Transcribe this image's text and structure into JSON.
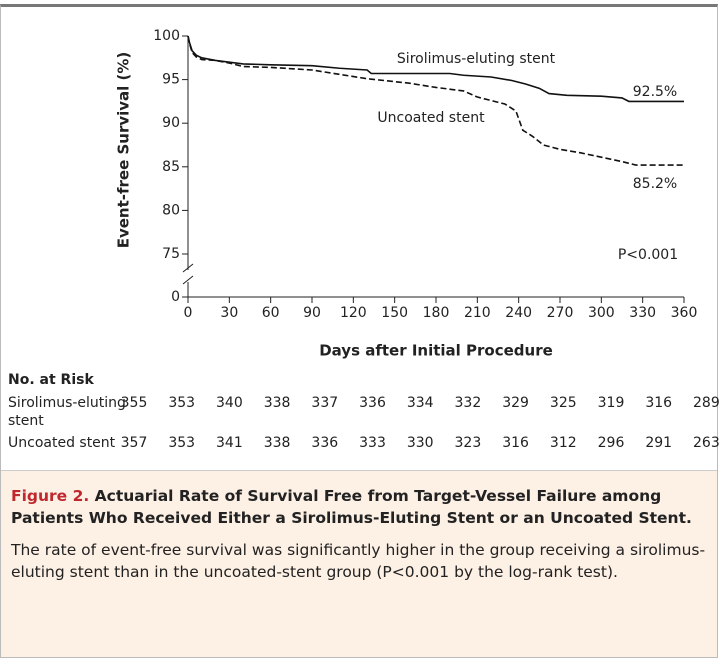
{
  "chart_data": {
    "type": "line",
    "y_label": "Event-free Survival (%)",
    "x_label": "Days after Initial Procedure",
    "xlim": [
      0,
      360
    ],
    "xticks": [
      0,
      30,
      60,
      90,
      120,
      150,
      180,
      210,
      240,
      270,
      300,
      330,
      360
    ],
    "ylim": [
      75,
      100
    ],
    "yticks": [
      0,
      75,
      80,
      85,
      90,
      95,
      100
    ],
    "y_break": [
      0,
      75
    ],
    "series": [
      {
        "name": "Sirolimus-eluting stent",
        "color": "#111111",
        "dashed": false,
        "x": [
          0,
          1,
          3,
          6,
          10,
          20,
          30,
          40,
          60,
          90,
          110,
          130,
          133,
          190,
          200,
          220,
          235,
          245,
          255,
          262,
          275,
          300,
          315,
          320,
          360
        ],
        "values": [
          100,
          99.3,
          98.3,
          97.8,
          97.5,
          97.2,
          97,
          96.8,
          96.7,
          96.6,
          96.3,
          96.1,
          95.7,
          95.7,
          95.5,
          95.3,
          94.9,
          94.5,
          94,
          93.4,
          93.2,
          93.1,
          92.9,
          92.5,
          92.5
        ]
      },
      {
        "name": "Uncoated stent",
        "color": "#111111",
        "dashed": true,
        "x": [
          0,
          1,
          3,
          6,
          10,
          20,
          30,
          40,
          60,
          90,
          110,
          130,
          160,
          180,
          200,
          210,
          230,
          238,
          243,
          250,
          258,
          270,
          285,
          300,
          315,
          325,
          360
        ],
        "values": [
          100,
          99.2,
          98.1,
          97.6,
          97.3,
          97.2,
          96.9,
          96.5,
          96.4,
          96.1,
          95.6,
          95.1,
          94.6,
          94.1,
          93.7,
          93.0,
          92.2,
          91.4,
          89.2,
          88.5,
          87.5,
          87.0,
          86.6,
          86.1,
          85.6,
          85.2,
          85.2
        ]
      }
    ],
    "annotations": [
      "92.5%",
      "85.2%",
      "P<0.001"
    ],
    "risk_table": {
      "title": "No. at Risk",
      "rows": [
        {
          "label": "Sirolimus-eluting stent",
          "values": [
            355,
            353,
            340,
            338,
            337,
            336,
            334,
            332,
            329,
            325,
            319,
            316,
            289
          ]
        },
        {
          "label": "Uncoated stent",
          "values": [
            357,
            353,
            341,
            338,
            336,
            333,
            330,
            323,
            316,
            312,
            296,
            291,
            263
          ]
        }
      ]
    }
  },
  "caption": {
    "label": "Figure 2.",
    "title": "Actuarial Rate of Survival Free from Target-Vessel Failure among Patients Who Received Either a Sirolimus-Eluting Stent or an Uncoated Stent.",
    "text": "The rate of event-free survival was significantly higher in the group receiving a sirolimus-eluting stent than in the uncoated-stent group (P<0.001 by the log-rank test)."
  }
}
